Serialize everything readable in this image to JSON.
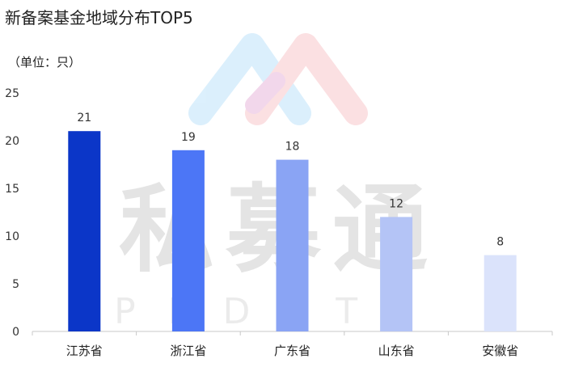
{
  "chart_data": {
    "type": "bar",
    "title": "新备案基金地域分布TOP5",
    "unit_label": "（单位：只）",
    "categories": [
      "江苏省",
      "浙江省",
      "广东省",
      "山东省",
      "安徽省"
    ],
    "values": [
      21,
      19,
      18,
      12,
      8
    ],
    "bar_colors": [
      "#0b36c8",
      "#4c76f6",
      "#8aa4f4",
      "#b4c4f6",
      "#dbe3fb"
    ],
    "ylim": [
      0,
      25
    ],
    "yticks": [
      0,
      5,
      10,
      15,
      20,
      25
    ],
    "grid": false,
    "xlabel": "",
    "ylabel": ""
  },
  "watermark": {
    "text": "私募通",
    "subtext": "PEDATA"
  }
}
